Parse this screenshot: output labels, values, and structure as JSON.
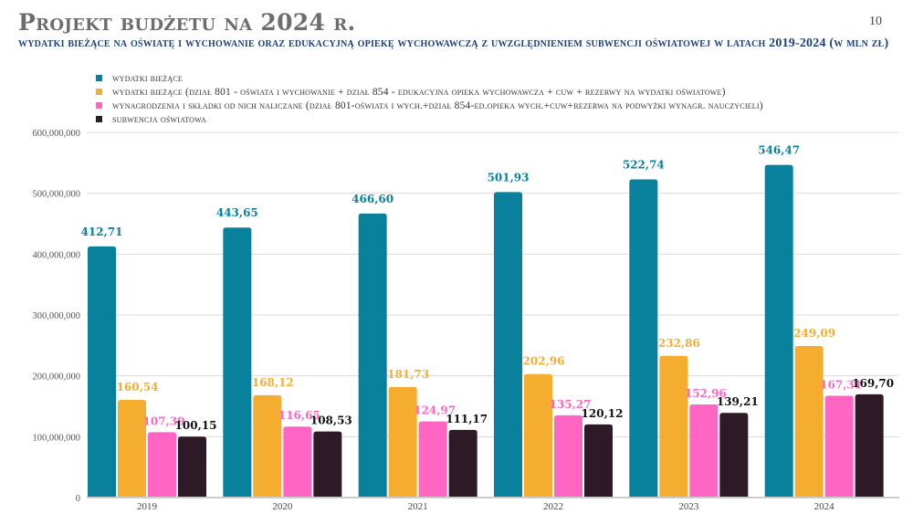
{
  "header": {
    "title": "Projekt budżetu na 2024 r.",
    "page_number": "10",
    "subtitle": "WYDATKI BIEŻĄCE NA OŚWIATĘ I WYCHOWANIE ORAZ EDUKACYJNĄ OPIEKĘ WYCHOWAWCZĄ Z UWZGLĘDNIENIEM SUBWENCJI OŚWIATOWEJ W LATACH 2019-2024 (W MLN ZŁ)"
  },
  "chart_data": {
    "type": "bar",
    "title": "Wydatki bieżące na oświatę i wychowanie oraz edukacyjną opiekę wychowawczą z uwzględnieniem subwencji oświatowej w latach 2019-2024 (w mln zł)",
    "xlabel": "",
    "ylabel": "",
    "categories": [
      "2019",
      "2020",
      "2021",
      "2022",
      "2023",
      "2024"
    ],
    "ylim": [
      0,
      600000000
    ],
    "yticks": [
      0,
      100000000,
      200000000,
      300000000,
      400000000,
      500000000,
      600000000
    ],
    "ytick_labels": [
      "0",
      "100,000,000",
      "200,000,000",
      "300,000,000",
      "400,000,000",
      "500,000,000",
      "600,000,000"
    ],
    "grid": true,
    "legend_position": "top-left",
    "value_unit": "mln zł",
    "series": [
      {
        "name": "wydatki bieżące",
        "color": "#0a819c",
        "values": [
          412.71,
          443.65,
          466.6,
          501.93,
          522.74,
          546.47
        ],
        "labels": [
          "412,71",
          "443,65",
          "466,60",
          "501,93",
          "522,74",
          "546,47"
        ]
      },
      {
        "name": "wydatki bieżące (dział 801 - Oświata i wychowanie + dział 854 - Edukacyjna opieka wychowawcza + CUW + rezerwy na wydatki oświatowe)",
        "color": "#f5ad30",
        "values": [
          160.54,
          168.12,
          181.73,
          202.96,
          232.86,
          249.09
        ],
        "labels": [
          "160,54",
          "168,12",
          "181,73",
          "202,96",
          "232,86",
          "249,09"
        ]
      },
      {
        "name": "wynagrodzenia i składki od nich naliczane (dział 801-Oświata i wych.+dział 854-Ed.opieka wych.+CUW+rezerwa na podwyżki wynagr. nauczycieli)",
        "color": "#ff66c4",
        "values": [
          107.39,
          116.65,
          124.97,
          135.27,
          152.96,
          167.31
        ],
        "labels": [
          "107,39",
          "116,65",
          "124,97",
          "135,27",
          "152,96",
          "167,31"
        ]
      },
      {
        "name": "subwencja oświatowa",
        "color": "#2e1a27",
        "values": [
          100.15,
          108.53,
          111.17,
          120.12,
          139.21,
          169.7
        ],
        "labels": [
          "100,15",
          "108,53",
          "111,17",
          "120,12",
          "139,21",
          "169,70"
        ]
      }
    ],
    "label_colors": [
      "#0a819c",
      "#f5ad30",
      "#ff66c4",
      "#111111"
    ]
  }
}
